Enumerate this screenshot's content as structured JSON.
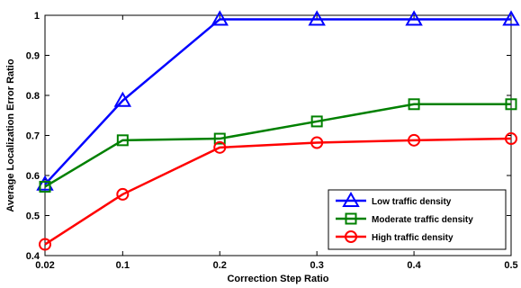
{
  "chart_data": {
    "type": "line",
    "title": "",
    "xlabel": "Correction Step Ratio",
    "ylabel": "Average Localization Error Ratio",
    "x": [
      0.02,
      0.1,
      0.2,
      0.3,
      0.4,
      0.5
    ],
    "x_tick_labels": [
      "0.02",
      "0.1",
      "0.2",
      "0.3",
      "0.4",
      "0.5"
    ],
    "y_ticks": [
      0.4,
      0.5,
      0.6,
      0.7,
      0.8,
      0.9,
      1
    ],
    "y_tick_labels": [
      "0.4",
      "0.5",
      "0.6",
      "0.7",
      "0.8",
      "0.9",
      "1"
    ],
    "ylim": [
      0.4,
      1.0
    ],
    "grid": false,
    "legend_position": "bottom-right",
    "series": [
      {
        "name": "Low traffic density",
        "color": "#0000ff",
        "marker": "triangle",
        "values": [
          0.578,
          0.787,
          0.99,
          0.99,
          0.99,
          0.99
        ]
      },
      {
        "name": "Moderate traffic density",
        "color": "#008000",
        "marker": "square",
        "values": [
          0.572,
          0.688,
          0.692,
          0.735,
          0.778,
          0.778
        ]
      },
      {
        "name": "High traffic density",
        "color": "#ff0000",
        "marker": "circle",
        "values": [
          0.428,
          0.553,
          0.67,
          0.682,
          0.688,
          0.692
        ]
      }
    ]
  }
}
